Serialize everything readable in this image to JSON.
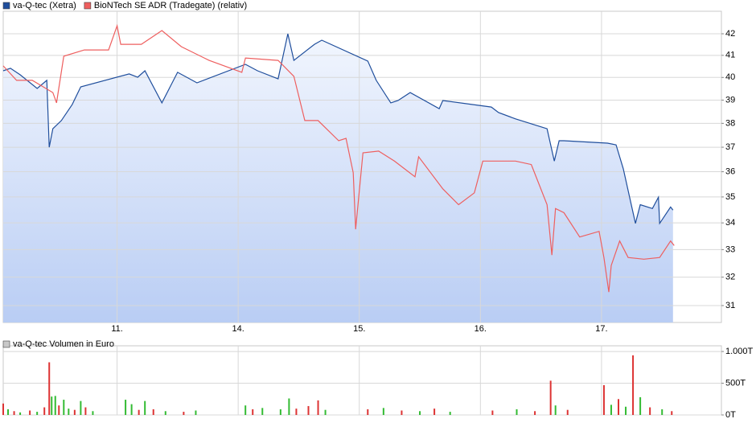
{
  "chart_data": [
    {
      "type": "line",
      "log_scale": true,
      "grid": true,
      "legend": "top-left",
      "xlim": [
        -0.94,
        4.99
      ],
      "xticks": [
        {
          "value": 0,
          "label": "11."
        },
        {
          "value": 1,
          "label": "14."
        },
        {
          "value": 2,
          "label": "15."
        },
        {
          "value": 3,
          "label": "16."
        },
        {
          "value": 4,
          "label": "17."
        }
      ],
      "ylim": [
        30.42,
        43.07
      ],
      "yticks": [
        31,
        32,
        33,
        34,
        35,
        36,
        37,
        38,
        39,
        40,
        41,
        42
      ],
      "series": [
        {
          "name": "va-Q-tec (Xetra)",
          "color": "#1f4e9c",
          "fill": true,
          "x": [
            -0.94,
            -0.88,
            -0.8,
            -0.66,
            -0.58,
            -0.56,
            -0.53,
            -0.46,
            -0.37,
            -0.3,
            0.1,
            0.17,
            0.23,
            0.37,
            0.5,
            0.66,
            1.06,
            1.16,
            1.33,
            1.41,
            1.46,
            1.63,
            1.69,
            2.07,
            2.14,
            2.26,
            2.32,
            2.42,
            2.66,
            2.69,
            3.09,
            3.15,
            3.29,
            3.55,
            3.61,
            3.65,
            3.69,
            4.05,
            4.12,
            4.18,
            4.28,
            4.32,
            4.42,
            4.47,
            4.48,
            4.57,
            4.59
          ],
          "values": [
            40.3,
            40.41,
            40.12,
            39.51,
            39.87,
            37.0,
            37.77,
            38.12,
            38.81,
            39.58,
            40.16,
            40.01,
            40.3,
            38.88,
            40.23,
            39.76,
            40.59,
            40.3,
            39.94,
            42.0,
            40.77,
            41.51,
            41.7,
            40.74,
            39.87,
            38.88,
            38.98,
            39.33,
            38.63,
            38.98,
            38.7,
            38.46,
            38.19,
            37.77,
            36.43,
            37.27,
            37.27,
            37.17,
            37.1,
            36.12,
            33.98,
            34.7,
            34.55,
            34.99,
            33.98,
            34.61,
            34.49
          ]
        },
        {
          "name": "BioNTech SE ADR (Tradegate) (relativ)",
          "color": "#ee5f5f",
          "fill": false,
          "x": [
            -0.94,
            -0.83,
            -0.7,
            -0.53,
            -0.5,
            -0.44,
            -0.27,
            -0.07,
            0.0,
            0.03,
            0.2,
            0.37,
            0.53,
            0.76,
            1.03,
            1.06,
            1.33,
            1.46,
            1.55,
            1.66,
            1.83,
            1.89,
            1.95,
            1.97,
            2.03,
            2.16,
            2.29,
            2.46,
            2.49,
            2.69,
            2.82,
            2.95,
            3.02,
            3.29,
            3.42,
            3.55,
            3.59,
            3.62,
            3.69,
            3.82,
            3.98,
            4.02,
            4.06,
            4.08,
            4.15,
            4.22,
            4.35,
            4.48,
            4.57,
            4.6
          ],
          "values": [
            40.52,
            39.87,
            39.87,
            39.33,
            38.88,
            40.96,
            41.25,
            41.25,
            42.38,
            41.51,
            41.51,
            42.15,
            41.4,
            40.77,
            40.23,
            40.88,
            40.77,
            40.05,
            38.12,
            38.12,
            37.27,
            37.37,
            35.96,
            33.76,
            36.77,
            36.84,
            36.43,
            35.8,
            36.61,
            35.32,
            34.7,
            35.16,
            36.43,
            36.43,
            36.29,
            34.7,
            32.8,
            34.55,
            34.39,
            33.47,
            33.68,
            32.71,
            31.47,
            32.42,
            33.32,
            32.71,
            32.65,
            32.71,
            33.32,
            33.15
          ]
        }
      ]
    },
    {
      "type": "bar",
      "grid": true,
      "legend": "top-left",
      "xlim": [
        -0.94,
        4.99
      ],
      "xticks": [
        0,
        1,
        2,
        3,
        4
      ],
      "ylim": [
        0,
        1090
      ],
      "yticks": [
        {
          "value": 0,
          "label": "0T"
        },
        {
          "value": 500,
          "label": "500T"
        },
        {
          "value": 1000,
          "label": "1.000T"
        }
      ],
      "series": [
        {
          "name": "va-Q-tec Volumen in Euro",
          "color": "#c8c8c8",
          "x": [
            -0.94,
            -0.9,
            -0.85,
            -0.8,
            -0.72,
            -0.66,
            -0.6,
            -0.56,
            -0.54,
            -0.51,
            -0.48,
            -0.44,
            -0.4,
            -0.35,
            -0.3,
            -0.26,
            -0.2,
            0.07,
            0.12,
            0.18,
            0.23,
            0.3,
            0.4,
            0.55,
            0.65,
            1.06,
            1.12,
            1.2,
            1.35,
            1.42,
            1.48,
            1.58,
            1.66,
            1.72,
            2.07,
            2.2,
            2.35,
            2.5,
            2.62,
            2.75,
            3.1,
            3.3,
            3.45,
            3.58,
            3.62,
            3.72,
            4.02,
            4.08,
            4.14,
            4.2,
            4.26,
            4.32,
            4.4,
            4.5,
            4.58
          ],
          "values": [
            180,
            90,
            60,
            40,
            70,
            50,
            120,
            830,
            290,
            300,
            150,
            240,
            100,
            80,
            220,
            120,
            60,
            240,
            170,
            80,
            220,
            90,
            60,
            50,
            70,
            150,
            90,
            110,
            90,
            260,
            100,
            140,
            230,
            80,
            90,
            110,
            70,
            60,
            100,
            50,
            70,
            90,
            60,
            540,
            150,
            80,
            470,
            160,
            250,
            130,
            940,
            280,
            120,
            90,
            60
          ],
          "colors": [
            "#d33",
            "#3b3",
            "#d33",
            "#3b3",
            "#d33",
            "#3b3",
            "#d33",
            "#d33",
            "#3b3",
            "#3b3",
            "#d33",
            "#3b3",
            "#3b3",
            "#d33",
            "#3b3",
            "#d33",
            "#3b3",
            "#3b3",
            "#3b3",
            "#d33",
            "#3b3",
            "#d33",
            "#3b3",
            "#d33",
            "#3b3",
            "#3b3",
            "#d33",
            "#3b3",
            "#3b3",
            "#3b3",
            "#d33",
            "#d33",
            "#d33",
            "#3b3",
            "#d33",
            "#3b3",
            "#d33",
            "#3b3",
            "#d33",
            "#3b3",
            "#d33",
            "#3b3",
            "#d33",
            "#d33",
            "#3b3",
            "#d33",
            "#d33",
            "#3b3",
            "#d33",
            "#3b3",
            "#d33",
            "#3b3",
            "#d33",
            "#3b3",
            "#d33"
          ]
        }
      ]
    }
  ]
}
